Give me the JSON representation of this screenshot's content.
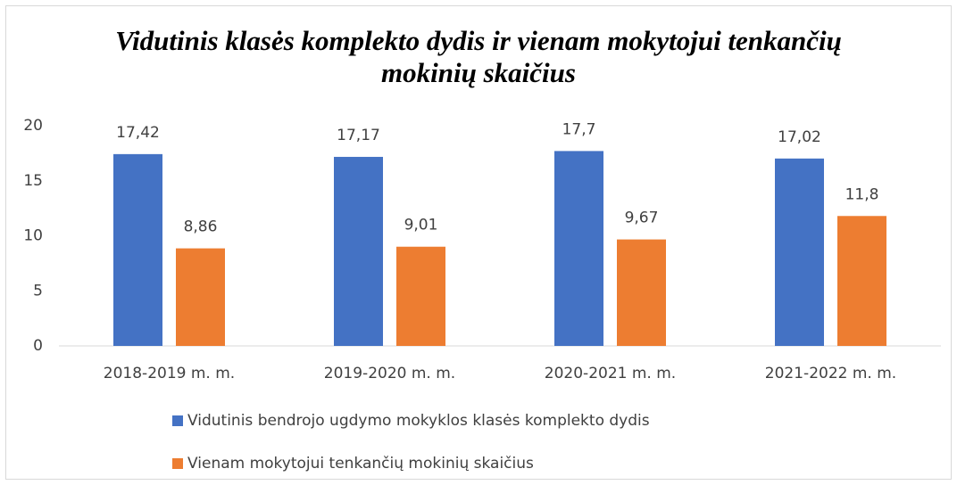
{
  "chart_data": {
    "type": "bar",
    "title": "Vidutinis klasės komplekto dydis ir vienam mokytojui tenkančių mokinių skaičius",
    "categories": [
      "2018-2019 m. m.",
      "2019-2020 m. m.",
      "2020-2021 m. m.",
      "2021-2022 m. m."
    ],
    "series": [
      {
        "name": "Vidutinis bendrojo ugdymo mokyklos klasės komplekto dydis",
        "color": "#4472c4",
        "values": [
          17.42,
          17.17,
          17.7,
          17.02
        ],
        "value_labels": [
          "17,42",
          "17,17",
          "17,7",
          "17,02"
        ]
      },
      {
        "name": "Vienam mokytojui tenkančių mokinių skaičius",
        "color": "#ed7d31",
        "values": [
          8.86,
          9.01,
          9.67,
          11.8
        ],
        "value_labels": [
          "8,86",
          "9,01",
          "9,67",
          "11,8"
        ]
      }
    ],
    "ylim": [
      0,
      20
    ],
    "yticks": [
      0,
      5,
      10,
      15,
      20
    ],
    "grid": false,
    "legend": "bottom"
  }
}
